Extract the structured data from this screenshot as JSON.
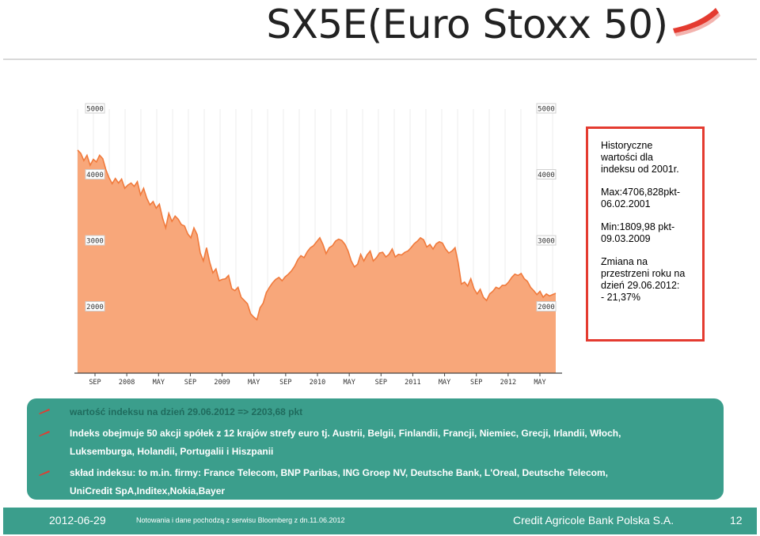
{
  "header": {
    "title": "SX5E(Euro Stoxx 50)"
  },
  "info_box": {
    "p1": [
      "Historyczne",
      "wartości dla",
      "indeksu od 2001r."
    ],
    "p2": [
      "Max:4706,828pkt-",
      "06.02.2001"
    ],
    "p3": [
      "Min:1809,98 pkt-",
      "09.03.2009"
    ],
    "p4": [
      "Zmiana na",
      "przestrzeni roku na",
      "dzień 29.06.2012:",
      "- 21,37%"
    ]
  },
  "bullets": {
    "line1": "wartość indeksu na dzień 29.06.2012 => 2203,68 pkt",
    "line2": "Indeks obejmuje 50 akcji spółek z 12 krajów strefy euro tj. Austrii, Belgii, Finlandii, Francji, Niemiec, Grecji, Irlandii, Włoch,",
    "line3": "Luksemburga, Holandii, Portugalii i Hiszpanii",
    "line4": "skład indeksu: to m.in. firmy: France Telecom, BNP Paribas, ING Groep NV, Deutsche Bank, L'Oreal, Deutsche Telecom,",
    "line5": "UniCredit SpA,Inditex,Nokia,Bayer"
  },
  "footer": {
    "date": "2012-06-29",
    "note": "Notowania i dane pochodzą z serwisu Bloomberg z dn.11.06.2012",
    "bank": "Credit Agricole Bank Polska S.A.",
    "page": "12"
  },
  "colors": {
    "accent": "#e43b30",
    "teal": "#3b9e8c",
    "area_fill": "#f8a77a",
    "area_line": "#f07a3c"
  },
  "chart_data": {
    "type": "area",
    "title": "",
    "xlabel": "",
    "ylabel": "",
    "ylim": [
      1000,
      5000
    ],
    "yticks": [
      "5000",
      "4000",
      "3000",
      "2000"
    ],
    "xticks": [
      "SEP",
      "2008",
      "MAY",
      "SEP",
      "2009",
      "MAY",
      "SEP",
      "2010",
      "MAY",
      "SEP",
      "2011",
      "MAY",
      "SEP",
      "2012",
      "MAY"
    ],
    "series": [
      {
        "values": [
          4380,
          4330,
          4220,
          4300,
          4150,
          4240,
          4200,
          4300,
          4250,
          4080,
          3960,
          3870,
          3950,
          3880,
          3940,
          3800,
          3850,
          3880,
          3830,
          3900,
          3700,
          3800,
          3650,
          3550,
          3600,
          3500,
          3560,
          3350,
          3200,
          3420,
          3300,
          3380,
          3330,
          3250,
          3230,
          3110,
          3050,
          3200,
          3100,
          2820,
          2700,
          2900,
          2680,
          2520,
          2580,
          2400,
          2420,
          2430,
          2480,
          2280,
          2250,
          2300,
          2150,
          2100,
          2050,
          1900,
          1850,
          1810,
          1990,
          2060,
          2220,
          2300,
          2370,
          2420,
          2450,
          2400,
          2460,
          2500,
          2550,
          2620,
          2720,
          2780,
          2750,
          2840,
          2900,
          2930,
          2990,
          3050,
          2950,
          2810,
          2900,
          2930,
          3000,
          3030,
          3010,
          2950,
          2850,
          2700,
          2610,
          2650,
          2800,
          2700,
          2790,
          2850,
          2700,
          2750,
          2820,
          2830,
          2760,
          2800,
          2880,
          2760,
          2800,
          2790,
          2830,
          2850,
          2900,
          2960,
          3000,
          3050,
          3020,
          2910,
          2950,
          2880,
          2960,
          2990,
          2970,
          2880,
          2820,
          2850,
          2900,
          2670,
          2350,
          2380,
          2320,
          2430,
          2280,
          2200,
          2270,
          2150,
          2100,
          2200,
          2240,
          2300,
          2280,
          2330,
          2330,
          2380,
          2450,
          2500,
          2480,
          2510,
          2430,
          2390,
          2300,
          2250,
          2190,
          2240,
          2150,
          2200,
          2170,
          2190,
          2210
        ]
      }
    ]
  }
}
